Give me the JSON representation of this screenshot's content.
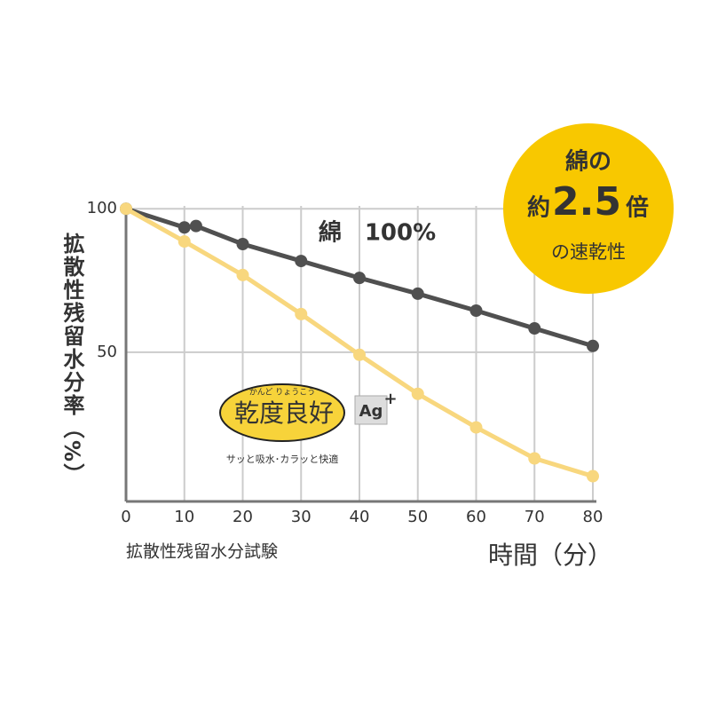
{
  "chart_data": {
    "type": "line",
    "y_axis_title": "拡散性残留水分率（%）",
    "x_axis_title": "時間（分）",
    "caption": "拡散性残留水分試験",
    "series": [
      {
        "name": "綿　100%",
        "color": "#505050",
        "x": [
          0,
          10,
          12,
          20,
          30,
          40,
          50,
          60,
          70,
          80
        ],
        "values": [
          100,
          93.5,
          94,
          87.7,
          81.8,
          75.9,
          70.4,
          64.5,
          58.3,
          52.2
        ]
      },
      {
        "color": "#f8d77e",
        "x": [
          0,
          10,
          20,
          30,
          40,
          50,
          60,
          70,
          80
        ],
        "values": [
          100,
          88.6,
          76.9,
          63.3,
          49.1,
          35.5,
          23.8,
          13.0,
          6.8
        ]
      }
    ],
    "xlim": [
      0,
      80
    ],
    "xticks": [
      0,
      10,
      20,
      30,
      40,
      50,
      60,
      70,
      80
    ],
    "ylim": [
      -2,
      101
    ],
    "yticks": [
      50,
      100
    ],
    "grid": true,
    "badge": {
      "line1": "綿の",
      "prefix": "約",
      "number": "2.5",
      "suffix": "倍",
      "line3": "の速乾性"
    },
    "logo": {
      "ruby": "かんど りょうこう",
      "name": "乾度良好",
      "mark": "Ag",
      "mark_sup": "+",
      "tagline": "サッと吸水･カラッと快適"
    }
  }
}
